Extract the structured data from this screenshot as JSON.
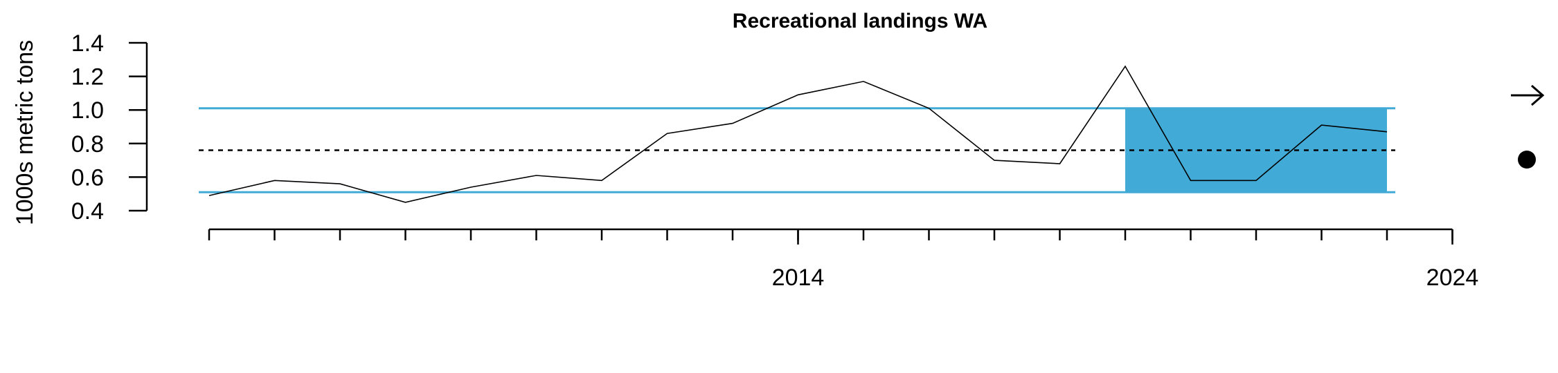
{
  "chart_data": {
    "type": "line",
    "title": "Recreational landings WA",
    "xlabel": "",
    "ylabel": "1000s metric tons",
    "ylim": [
      0.4,
      1.4
    ],
    "yticks": [
      "0.4",
      "0.6",
      "0.8",
      "1.0",
      "1.2",
      "1.4"
    ],
    "xlim": [
      2005,
      2024
    ],
    "xtick_labels": [
      "2014",
      "2024"
    ],
    "series": [
      {
        "name": "Recreational landings WA",
        "x": [
          2005,
          2006,
          2007,
          2008,
          2009,
          2010,
          2011,
          2012,
          2013,
          2014,
          2015,
          2016,
          2017,
          2018,
          2019,
          2020,
          2021,
          2022,
          2023
        ],
        "values": [
          0.49,
          0.58,
          0.56,
          0.45,
          0.54,
          0.61,
          0.58,
          0.86,
          0.92,
          1.09,
          1.17,
          1.01,
          0.7,
          0.68,
          1.26,
          0.58,
          0.58,
          0.91,
          0.87
        ]
      }
    ],
    "reference_lines": {
      "mean": 0.76,
      "upper_sd": 1.01,
      "lower_sd": 0.51
    },
    "highlight_range": [
      2019,
      2023
    ],
    "colors": {
      "band": "#41aad6",
      "line": "#000000"
    },
    "trend_icon": "right-arrow-icon",
    "status_icon": "filled-circle-icon"
  }
}
